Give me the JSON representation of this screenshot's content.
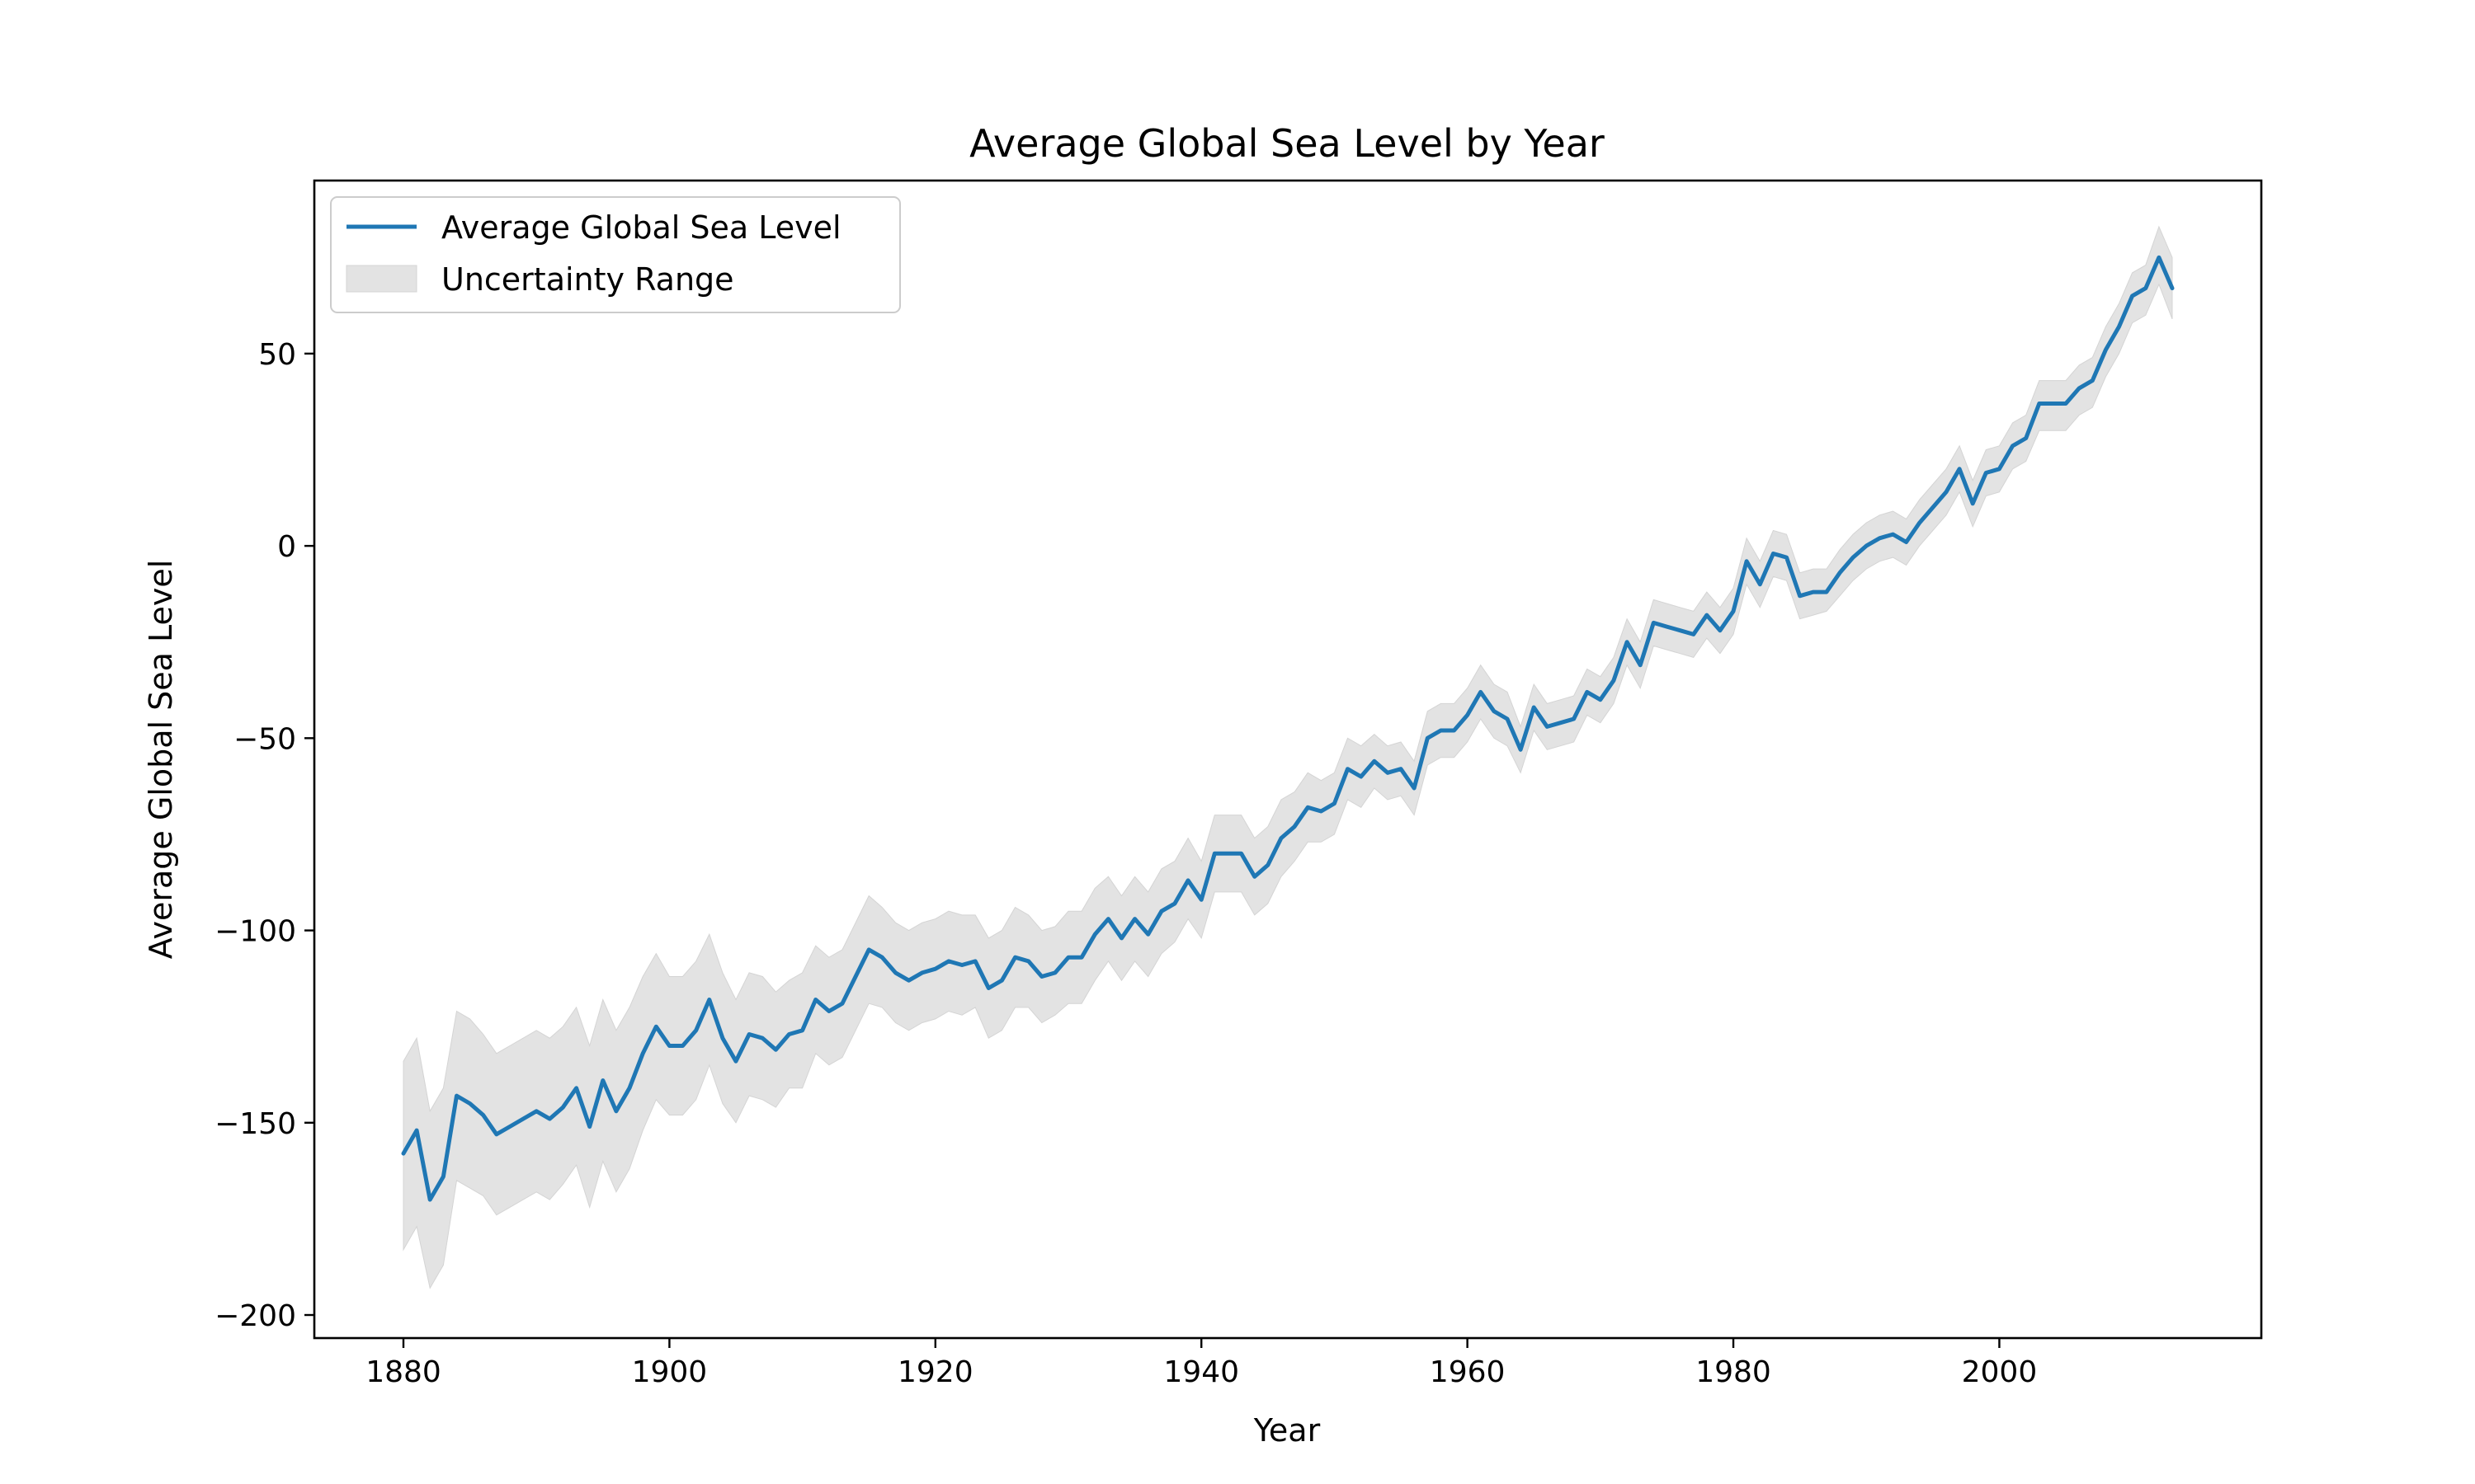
{
  "chart_data": {
    "type": "line",
    "title": "Average Global Sea Level by Year",
    "xlabel": "Year",
    "ylabel": "Average Global Sea Level",
    "xlim": [
      1873.3,
      2019.7
    ],
    "ylim": [
      -206,
      95
    ],
    "x_ticks": [
      1880,
      1900,
      1920,
      1940,
      1960,
      1980,
      2000
    ],
    "y_ticks": [
      -200,
      -150,
      -100,
      -50,
      0,
      50
    ],
    "x_tick_labels": [
      "1880",
      "1900",
      "1920",
      "1940",
      "1960",
      "1980",
      "2000"
    ],
    "y_tick_labels": [
      "−200",
      "−150",
      "−100",
      "−50",
      "0",
      "50"
    ],
    "grid": false,
    "legend_position": "upper-left",
    "legend": {
      "line_label": "Average Global Sea Level",
      "band_label": "Uncertainty Range"
    },
    "colors": {
      "line": "#1f77b4",
      "band": "#e3e3e3",
      "band_edge": "#d4d4d4"
    },
    "series": [
      {
        "name": "Average Global Sea Level",
        "x": [
          1880,
          1881,
          1882,
          1883,
          1884,
          1885,
          1886,
          1887,
          1888,
          1889,
          1890,
          1891,
          1892,
          1893,
          1894,
          1895,
          1896,
          1897,
          1898,
          1899,
          1900,
          1901,
          1902,
          1903,
          1904,
          1905,
          1906,
          1907,
          1908,
          1909,
          1910,
          1911,
          1912,
          1913,
          1914,
          1915,
          1916,
          1917,
          1918,
          1919,
          1920,
          1921,
          1922,
          1923,
          1924,
          1925,
          1926,
          1927,
          1928,
          1929,
          1930,
          1931,
          1932,
          1933,
          1934,
          1935,
          1936,
          1937,
          1938,
          1939,
          1940,
          1941,
          1942,
          1943,
          1944,
          1945,
          1946,
          1947,
          1948,
          1949,
          1950,
          1951,
          1952,
          1953,
          1954,
          1955,
          1956,
          1957,
          1958,
          1959,
          1960,
          1961,
          1962,
          1963,
          1964,
          1965,
          1966,
          1967,
          1968,
          1969,
          1970,
          1971,
          1972,
          1973,
          1974,
          1975,
          1976,
          1977,
          1978,
          1979,
          1980,
          1981,
          1982,
          1983,
          1984,
          1985,
          1986,
          1987,
          1988,
          1989,
          1990,
          1991,
          1992,
          1993,
          1994,
          1995,
          1996,
          1997,
          1998,
          1999,
          2000,
          2001,
          2002,
          2003,
          2004,
          2005,
          2006,
          2007,
          2008,
          2009,
          2010,
          2011,
          2012,
          2013
        ],
        "y": [
          -158,
          -152,
          -170,
          -164,
          -143,
          -145,
          -148,
          -153,
          -151,
          -149,
          -147,
          -149,
          -146,
          -141,
          -151,
          -139,
          -147,
          -141,
          -132,
          -125,
          -130,
          -130,
          -126,
          -118,
          -128,
          -134,
          -127,
          -128,
          -131,
          -127,
          -126,
          -118,
          -121,
          -119,
          -112,
          -105,
          -107,
          -111,
          -113,
          -111,
          -110,
          -108,
          -109,
          -108,
          -115,
          -113,
          -107,
          -108,
          -112,
          -111,
          -107,
          -107,
          -101,
          -97,
          -102,
          -97,
          -101,
          -95,
          -93,
          -87,
          -92,
          -80,
          -80,
          -80,
          -86,
          -83,
          -76,
          -73,
          -68,
          -69,
          -67,
          -58,
          -60,
          -56,
          -59,
          -58,
          -63,
          -50,
          -48,
          -48,
          -44,
          -38,
          -43,
          -45,
          -53,
          -42,
          -47,
          -46,
          -45,
          -38,
          -40,
          -35,
          -25,
          -31,
          -20,
          -21,
          -22,
          -23,
          -18,
          -22,
          -17,
          -4,
          -10,
          -2,
          -3,
          -13,
          -12,
          -12,
          -7,
          -3,
          0,
          2,
          3,
          1,
          6,
          10,
          14,
          20,
          11,
          19,
          20,
          26,
          28,
          37,
          37,
          37,
          41,
          43,
          51,
          57,
          65,
          67,
          75,
          67
        ]
      },
      {
        "name": "Uncertainty Range",
        "x": [
          1880,
          1881,
          1882,
          1883,
          1884,
          1885,
          1886,
          1887,
          1888,
          1889,
          1890,
          1891,
          1892,
          1893,
          1894,
          1895,
          1896,
          1897,
          1898,
          1899,
          1900,
          1901,
          1902,
          1903,
          1904,
          1905,
          1906,
          1907,
          1908,
          1909,
          1910,
          1911,
          1912,
          1913,
          1914,
          1915,
          1916,
          1917,
          1918,
          1919,
          1920,
          1921,
          1922,
          1923,
          1924,
          1925,
          1926,
          1927,
          1928,
          1929,
          1930,
          1931,
          1932,
          1933,
          1934,
          1935,
          1936,
          1937,
          1938,
          1939,
          1940,
          1941,
          1942,
          1943,
          1944,
          1945,
          1946,
          1947,
          1948,
          1949,
          1950,
          1951,
          1952,
          1953,
          1954,
          1955,
          1956,
          1957,
          1958,
          1959,
          1960,
          1961,
          1962,
          1963,
          1964,
          1965,
          1966,
          1967,
          1968,
          1969,
          1970,
          1971,
          1972,
          1973,
          1974,
          1975,
          1976,
          1977,
          1978,
          1979,
          1980,
          1981,
          1982,
          1983,
          1984,
          1985,
          1986,
          1987,
          1988,
          1989,
          1990,
          1991,
          1992,
          1993,
          1994,
          1995,
          1996,
          1997,
          1998,
          1999,
          2000,
          2001,
          2002,
          2003,
          2004,
          2005,
          2006,
          2007,
          2008,
          2009,
          2010,
          2011,
          2012,
          2013
        ],
        "lower": [
          -183,
          -177,
          -193,
          -187,
          -165,
          -167,
          -169,
          -174,
          -172,
          -170,
          -168,
          -170,
          -166,
          -161,
          -172,
          -160,
          -168,
          -162,
          -152,
          -144,
          -148,
          -148,
          -144,
          -135,
          -145,
          -150,
          -143,
          -144,
          -146,
          -141,
          -141,
          -132,
          -135,
          -133,
          -126,
          -119,
          -120,
          -124,
          -126,
          -124,
          -123,
          -121,
          -122,
          -120,
          -128,
          -126,
          -120,
          -120,
          -124,
          -122,
          -119,
          -119,
          -113,
          -108,
          -113,
          -108,
          -112,
          -106,
          -103,
          -97,
          -102,
          -90,
          -90,
          -90,
          -96,
          -93,
          -86,
          -82,
          -77,
          -77,
          -75,
          -66,
          -68,
          -63,
          -66,
          -65,
          -70,
          -57,
          -55,
          -55,
          -51,
          -45,
          -50,
          -52,
          -59,
          -48,
          -53,
          -52,
          -51,
          -44,
          -46,
          -41,
          -31,
          -37,
          -26,
          -27,
          -28,
          -29,
          -24,
          -28,
          -23,
          -10,
          -16,
          -8,
          -9,
          -19,
          -18,
          -17,
          -13,
          -9,
          -6,
          -4,
          -3,
          -5,
          0,
          4,
          8,
          14,
          5,
          13,
          14,
          20,
          22,
          30,
          30,
          30,
          34,
          36,
          44,
          50,
          58,
          60,
          68,
          59
        ],
        "upper": [
          -134,
          -128,
          -147,
          -141,
          -121,
          -123,
          -127,
          -132,
          -130,
          -128,
          -126,
          -128,
          -125,
          -120,
          -130,
          -118,
          -126,
          -120,
          -112,
          -106,
          -112,
          -112,
          -108,
          -101,
          -111,
          -118,
          -111,
          -112,
          -116,
          -113,
          -111,
          -104,
          -107,
          -105,
          -98,
          -91,
          -94,
          -98,
          -100,
          -98,
          -97,
          -95,
          -96,
          -96,
          -102,
          -100,
          -94,
          -96,
          -100,
          -99,
          -95,
          -95,
          -89,
          -86,
          -91,
          -86,
          -90,
          -84,
          -82,
          -76,
          -82,
          -70,
          -70,
          -70,
          -76,
          -73,
          -66,
          -64,
          -59,
          -61,
          -59,
          -50,
          -52,
          -49,
          -52,
          -51,
          -56,
          -43,
          -41,
          -41,
          -37,
          -31,
          -36,
          -38,
          -47,
          -36,
          -41,
          -40,
          -39,
          -32,
          -34,
          -29,
          -19,
          -25,
          -14,
          -15,
          -16,
          -17,
          -12,
          -16,
          -11,
          2,
          -4,
          4,
          3,
          -7,
          -6,
          -6,
          -1,
          3,
          6,
          8,
          9,
          7,
          12,
          16,
          20,
          26,
          17,
          25,
          26,
          32,
          34,
          43,
          43,
          43,
          47,
          49,
          57,
          63,
          71,
          73,
          83,
          75
        ]
      }
    ]
  }
}
